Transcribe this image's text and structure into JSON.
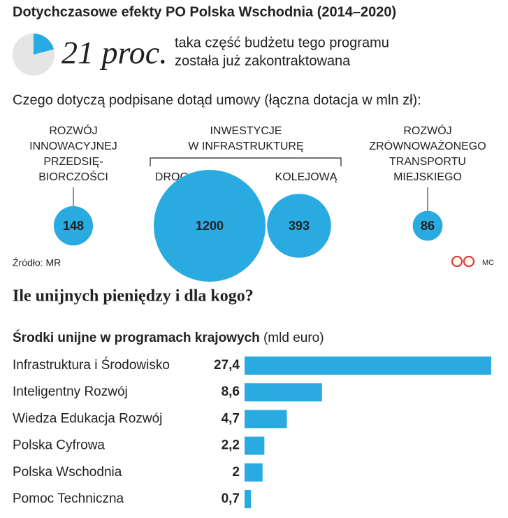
{
  "chart_data": [
    {
      "type": "pie",
      "title": "Dotychczasowe efekty PO Polska Wschodnia (2014–2020)",
      "values": [
        21
      ],
      "value_labels": [
        "21 proc."
      ],
      "color": "#29abe2",
      "rest_color": "#e5e5e5",
      "caption": [
        "taka część budżetu tego programu",
        "została już zakontraktowana"
      ]
    },
    {
      "type": "bubble",
      "title": "Czego dotyczą podpisane dotąd umowy (łączna dotacja w mln zł):",
      "categories": [
        [
          "ROZWÓJ",
          "INNOWACYJNEJ",
          "PRZEDSIĘ-",
          "BIORCZOŚCI"
        ],
        [
          "DROGOWĄ"
        ],
        [
          "KOLEJOWĄ"
        ],
        [
          "ROZWÓJ",
          "ZRÓWNOWAŻONEGO",
          "TRANSPORTU",
          "MIEJSKIEGO"
        ]
      ],
      "group_label": [
        "INWESTYCJE",
        "W INFRASTRUKTURĘ"
      ],
      "values": [
        148,
        1200,
        393,
        86
      ],
      "color": "#29abe2",
      "source": "Źródło: MR",
      "credit": "MC"
    },
    {
      "type": "bar",
      "title": "Ile unijnych pieniędzy i dla kogo?",
      "subtitle": "Środki unijne w programach krajowych",
      "unit": "(mld euro)",
      "categories": [
        "Infrastruktura i Środowisko",
        "Inteligentny Rozwój",
        "Wiedza Edukacja Rozwój",
        "Polska Cyfrowa",
        "Polska Wschodnia",
        "Pomoc Techniczna"
      ],
      "values": [
        27.4,
        8.6,
        4.7,
        2.2,
        2,
        0.7
      ],
      "value_labels": [
        "27,4",
        "8,6",
        "4,7",
        "2,2",
        "2",
        "0,7"
      ],
      "color": "#29abe2",
      "xlim": [
        0,
        27.4
      ]
    }
  ]
}
